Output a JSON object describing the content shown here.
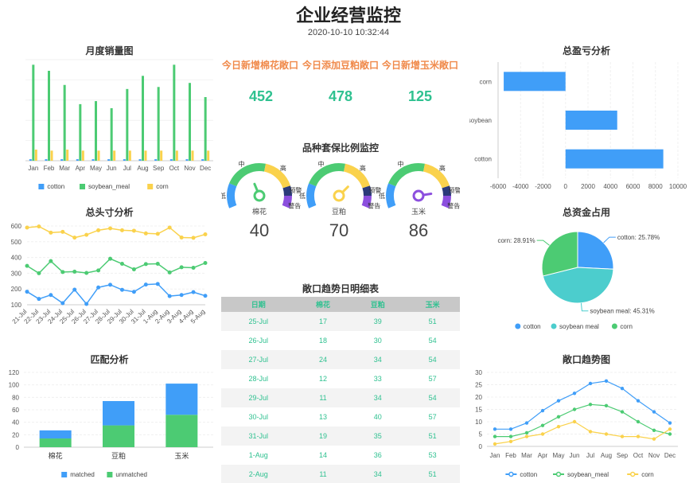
{
  "header": {
    "title": "企业经营监控",
    "timestamp": "2020-10-10 10:32:44"
  },
  "colors": {
    "blue": "#409ef8",
    "green": "#4ccb73",
    "yellow": "#fad24c",
    "teal": "#4ccdcd",
    "purple": "#8c4fde",
    "kpi_label": "#f08a4b",
    "kpi_value": "#2fc190"
  },
  "kpis": [
    {
      "label": "今日新增棉花敞口",
      "value": "452"
    },
    {
      "label": "今日添加豆粕敞口",
      "value": "478"
    },
    {
      "label": "今日新增玉米敞口",
      "value": "125"
    }
  ],
  "gauge_labels": {
    "title": "品种套保比例监控",
    "low": "低",
    "mid": "中",
    "high": "高",
    "warn": "预警",
    "alarm": "警告"
  },
  "gauges": [
    {
      "name": "棉花",
      "value": 40,
      "color": "#4ccb73"
    },
    {
      "name": "豆粕",
      "value": 70,
      "color": "#fad24c"
    },
    {
      "name": "玉米",
      "value": 86,
      "color": "#8c4fde"
    }
  ],
  "table": {
    "title": "敞口趋势日明细表",
    "headers": [
      "日期",
      "棉花",
      "豆粕",
      "玉米"
    ],
    "rows": [
      [
        "25-Jul",
        "17",
        "39",
        "51"
      ],
      [
        "26-Jul",
        "18",
        "30",
        "54"
      ],
      [
        "27-Jul",
        "24",
        "34",
        "54"
      ],
      [
        "28-Jul",
        "12",
        "33",
        "57"
      ],
      [
        "29-Jul",
        "11",
        "34",
        "54"
      ],
      [
        "30-Jul",
        "13",
        "40",
        "57"
      ],
      [
        "31-Jul",
        "19",
        "35",
        "51"
      ],
      [
        "1-Aug",
        "14",
        "36",
        "53"
      ],
      [
        "2-Aug",
        "11",
        "34",
        "51"
      ]
    ]
  },
  "chart_data": [
    {
      "id": "monthly-sales",
      "type": "bar",
      "title": "月度销量图",
      "categories": [
        "Jan",
        "Feb",
        "Mar",
        "Apr",
        "May",
        "Jun",
        "Jul",
        "Aug",
        "Sep",
        "Oct",
        "Nov",
        "Dec"
      ],
      "series": [
        {
          "name": "cotton",
          "color": "#409ef8",
          "values": [
            1.5,
            1.5,
            1.5,
            1.5,
            1.5,
            1.5,
            1.5,
            1.5,
            1.5,
            1.5,
            1.5,
            1.5
          ]
        },
        {
          "name": "soybean_meal",
          "color": "#4ccb73",
          "values": [
            95,
            89,
            75,
            56,
            59,
            52,
            71,
            84,
            73,
            95,
            77,
            63
          ]
        },
        {
          "name": "corn",
          "color": "#fad24c",
          "values": [
            11,
            10,
            11,
            10,
            10,
            10,
            10,
            10,
            10,
            10,
            10,
            10
          ]
        }
      ],
      "ylim": [
        0,
        100
      ],
      "grid": true,
      "legend": "bottom"
    },
    {
      "id": "head-size",
      "type": "line",
      "title": "总头寸分析",
      "categories": [
        "21-Jul",
        "22-Jul",
        "23-Jul",
        "24-Jul",
        "25-Jul",
        "26-Jul",
        "27-Jul",
        "28-Jul",
        "29-Jul",
        "30-Jul",
        "31-Jul",
        "1-Aug",
        "2-Aug",
        "3-Aug",
        "4-Aug",
        "5-Aug"
      ],
      "series": [
        {
          "name": "yellow",
          "color": "#fad24c",
          "values": [
            590,
            597,
            558,
            563,
            526,
            544,
            573,
            585,
            573,
            570,
            553,
            550,
            590,
            527,
            525,
            547
          ]
        },
        {
          "name": "green",
          "color": "#4ccb73",
          "values": [
            347,
            300,
            377,
            308,
            310,
            302,
            318,
            392,
            360,
            325,
            358,
            360,
            305,
            338,
            335,
            365
          ]
        },
        {
          "name": "blue",
          "color": "#409ef8",
          "values": [
            183,
            137,
            162,
            110,
            196,
            105,
            210,
            227,
            195,
            182,
            228,
            232,
            155,
            162,
            180,
            157
          ]
        }
      ],
      "yticks": [
        100,
        200,
        300,
        400,
        500,
        600
      ],
      "ylim": [
        100,
        600
      ],
      "grid": true
    },
    {
      "id": "match",
      "type": "bar",
      "title": "匹配分析",
      "categories": [
        "棉花",
        "豆粕",
        "玉米"
      ],
      "series": [
        {
          "name": "matched",
          "color": "#409ef8",
          "values": [
            13,
            39,
            50
          ]
        },
        {
          "name": "unmatched",
          "color": "#4ccb73",
          "values": [
            14,
            35,
            52
          ]
        }
      ],
      "stacked": true,
      "yticks": [
        0,
        20,
        40,
        60,
        80,
        100,
        120
      ],
      "ylim": [
        0,
        120
      ],
      "grid": true,
      "legend": "bottom"
    },
    {
      "id": "profit-loss",
      "type": "bar",
      "orientation": "horizontal",
      "title": "总盈亏分析",
      "categories": [
        "corn",
        "soybean",
        "cotton"
      ],
      "values": [
        -5500,
        4600,
        8700
      ],
      "color": "#409ef8",
      "xticks": [
        -6000,
        -4000,
        -2000,
        0,
        2000,
        4000,
        6000,
        8000,
        10000
      ],
      "xlim": [
        -6000,
        10000
      ],
      "grid": true
    },
    {
      "id": "capital-share",
      "type": "pie",
      "title": "总资金占用",
      "slices": [
        {
          "name": "cotton",
          "value": 25.78,
          "label": "cotton: 25.78%",
          "color": "#409ef8"
        },
        {
          "name": "soybean meal",
          "value": 45.31,
          "label": "soybean meal: 45.31%",
          "color": "#4ccdcd"
        },
        {
          "name": "corn",
          "value": 28.91,
          "label": "corn: 28.91%",
          "color": "#4ccb73"
        }
      ],
      "legend": "bottom"
    },
    {
      "id": "exposure-trend",
      "type": "line",
      "title": "敞口趋势图",
      "categories": [
        "Jan",
        "Feb",
        "Mar",
        "Apr",
        "May",
        "Jun",
        "Jul",
        "Aug",
        "Sep",
        "Oct",
        "Nov",
        "Dec"
      ],
      "series": [
        {
          "name": "cotton",
          "color": "#409ef8",
          "values": [
            7,
            7,
            9.5,
            14.5,
            18.5,
            21.5,
            25.5,
            26.5,
            23.5,
            18.5,
            14,
            9.5
          ]
        },
        {
          "name": "soybean_meal",
          "color": "#4ccb73",
          "values": [
            4,
            4,
            5.5,
            8.5,
            12,
            15,
            17,
            16.5,
            14,
            10,
            6.5,
            5
          ]
        },
        {
          "name": "corn",
          "color": "#fad24c",
          "values": [
            1,
            2,
            4,
            5,
            8,
            10,
            6,
            5,
            4,
            4,
            3,
            7
          ]
        }
      ],
      "yticks": [
        0,
        5,
        10,
        15,
        20,
        25,
        30
      ],
      "ylim": [
        0,
        30
      ],
      "grid": true,
      "legend": "bottom"
    }
  ]
}
